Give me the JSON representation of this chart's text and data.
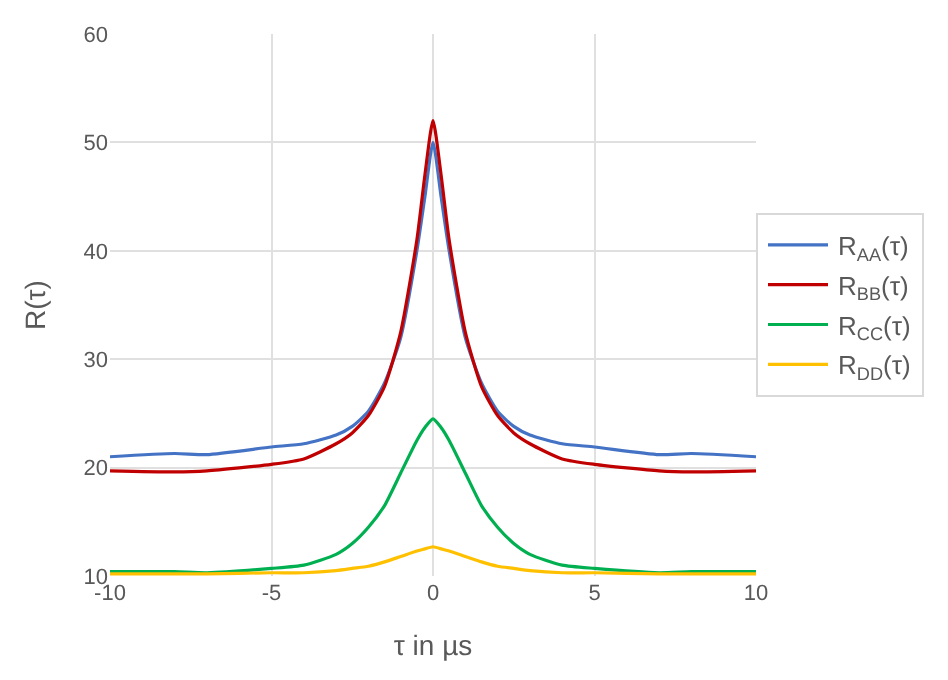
{
  "chart_data": {
    "type": "line",
    "xlabel": "τ in µs",
    "ylabel": "R(τ)",
    "x": [
      -10,
      -8,
      -7,
      -5,
      -4,
      -3,
      -2.5,
      -2,
      -1.5,
      -1,
      -0.5,
      -0.25,
      0,
      0.25,
      0.5,
      1,
      1.5,
      2,
      2.5,
      3,
      4,
      5,
      7,
      8,
      10
    ],
    "series": [
      {
        "name": "R$_{AA}$(τ)",
        "color": "#4472c4",
        "values": [
          21.0,
          21.3,
          21.2,
          21.9,
          22.2,
          23.0,
          23.8,
          25.2,
          27.8,
          32,
          40,
          45,
          50,
          45,
          40,
          32,
          27.8,
          25.2,
          23.8,
          23.0,
          22.2,
          21.9,
          21.2,
          21.3,
          21.0
        ]
      },
      {
        "name": "R$_{BB}$(τ)",
        "color": "#c00000",
        "values": [
          19.7,
          19.6,
          19.7,
          20.3,
          20.8,
          22.2,
          23.2,
          24.8,
          27.5,
          32.5,
          41,
          47,
          52,
          47,
          41,
          32.5,
          27.5,
          24.8,
          23.2,
          22.2,
          20.8,
          20.3,
          19.7,
          19.6,
          19.7
        ]
      },
      {
        "name": "R$_{CC}$(τ)",
        "color": "#00b050",
        "values": [
          10.4,
          10.4,
          10.3,
          10.7,
          11.0,
          12.0,
          13,
          14.5,
          16.5,
          19.5,
          22.5,
          23.7,
          24.5,
          23.7,
          22.5,
          19.5,
          16.5,
          14.5,
          13,
          12.0,
          11.0,
          10.7,
          10.3,
          10.4,
          10.4
        ]
      },
      {
        "name": "R$_{DD}$(τ)",
        "color": "#ffc000",
        "values": [
          10.2,
          10.2,
          10.2,
          10.3,
          10.3,
          10.5,
          10.7,
          10.9,
          11.3,
          11.8,
          12.3,
          12.5,
          12.7,
          12.5,
          12.3,
          11.8,
          11.3,
          10.9,
          10.7,
          10.5,
          10.3,
          10.3,
          10.2,
          10.2,
          10.2
        ]
      }
    ],
    "xlim": [
      -10,
      10
    ],
    "xticks": [
      -10,
      -5,
      0,
      5,
      10
    ],
    "ylim": [
      10,
      60
    ],
    "yticks": [
      10,
      20,
      30,
      40,
      50,
      60
    ],
    "grid": true,
    "legend": "right",
    "marker": "none",
    "line_style": "solid"
  }
}
